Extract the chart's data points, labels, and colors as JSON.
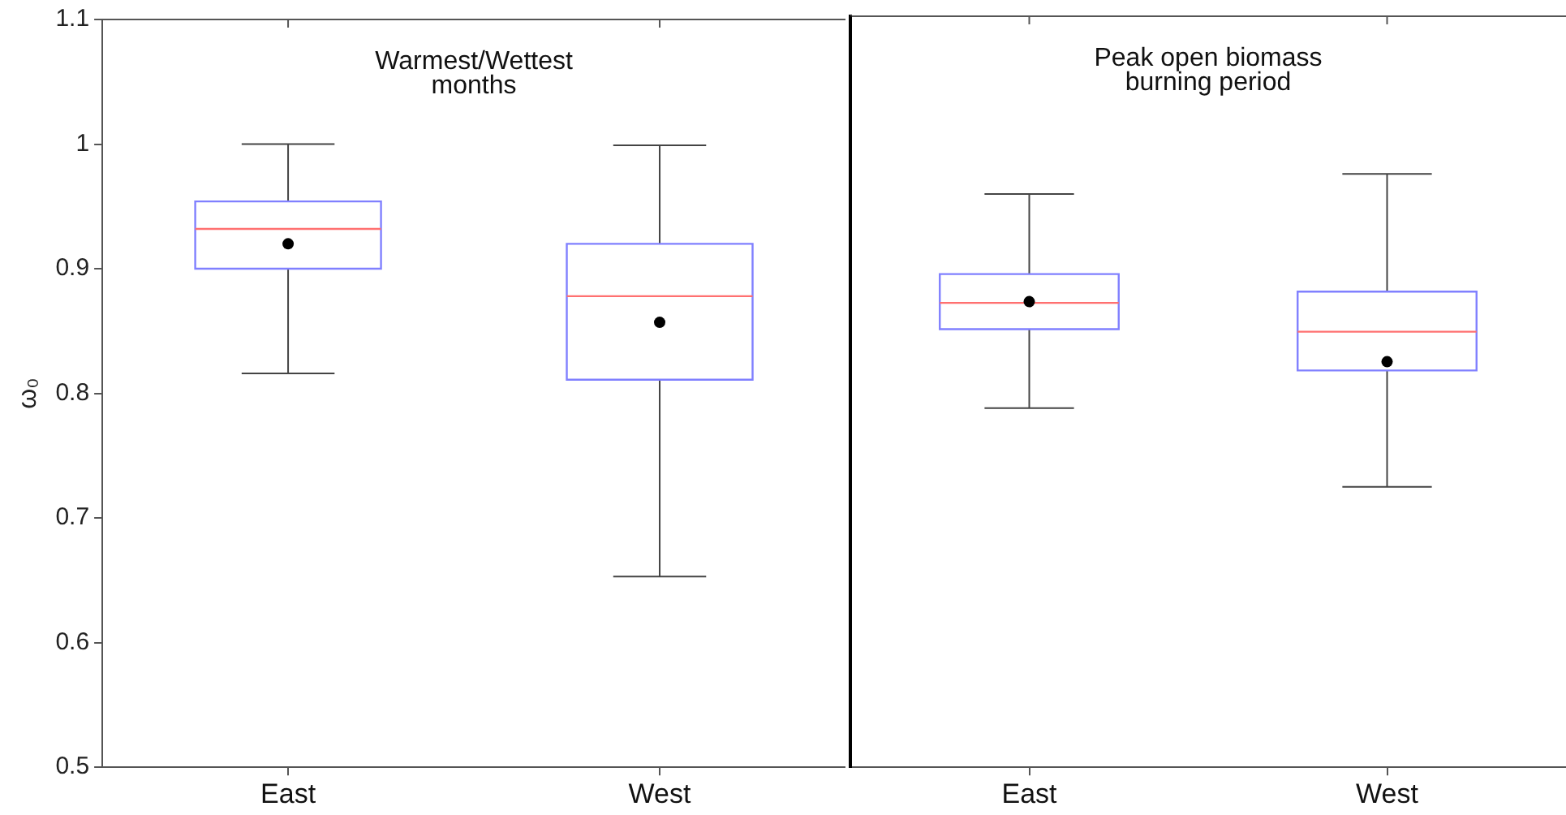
{
  "chart_data": [
    {
      "type": "box",
      "title": "Warmest/Wettest months",
      "ylabel": "ω₀",
      "categories": [
        "East",
        "West"
      ],
      "ylim": [
        0.5,
        1.1
      ],
      "yticks": [
        0.5,
        0.6,
        0.7,
        0.8,
        0.9,
        1,
        1.1
      ],
      "series": [
        {
          "color": "#8080ff",
          "boxes": [
            {
              "low": 0.816,
              "q1": 0.9,
              "median": 0.932,
              "q3": 0.954,
              "high": 1.0,
              "mean": 0.92
            },
            {
              "low": 0.653,
              "q1": 0.811,
              "median": 0.878,
              "q3": 0.92,
              "high": 0.999,
              "mean": 0.857
            }
          ]
        }
      ]
    },
    {
      "type": "box",
      "title": "Peak open biomass burning period",
      "categories": [
        "East",
        "West"
      ],
      "ylim": [
        0.5,
        1.1
      ],
      "tick_labels": "x",
      "series": [
        {
          "color": "#8080ff",
          "boxes": [
            {
              "low": 0.787,
              "q1": 0.85,
              "median": 0.871,
              "q3": 0.894,
              "high": 0.958,
              "mean": 0.872
            },
            {
              "low": 0.724,
              "q1": 0.817,
              "median": 0.848,
              "q3": 0.88,
              "high": 0.974,
              "mean": 0.824
            }
          ]
        }
      ]
    }
  ]
}
